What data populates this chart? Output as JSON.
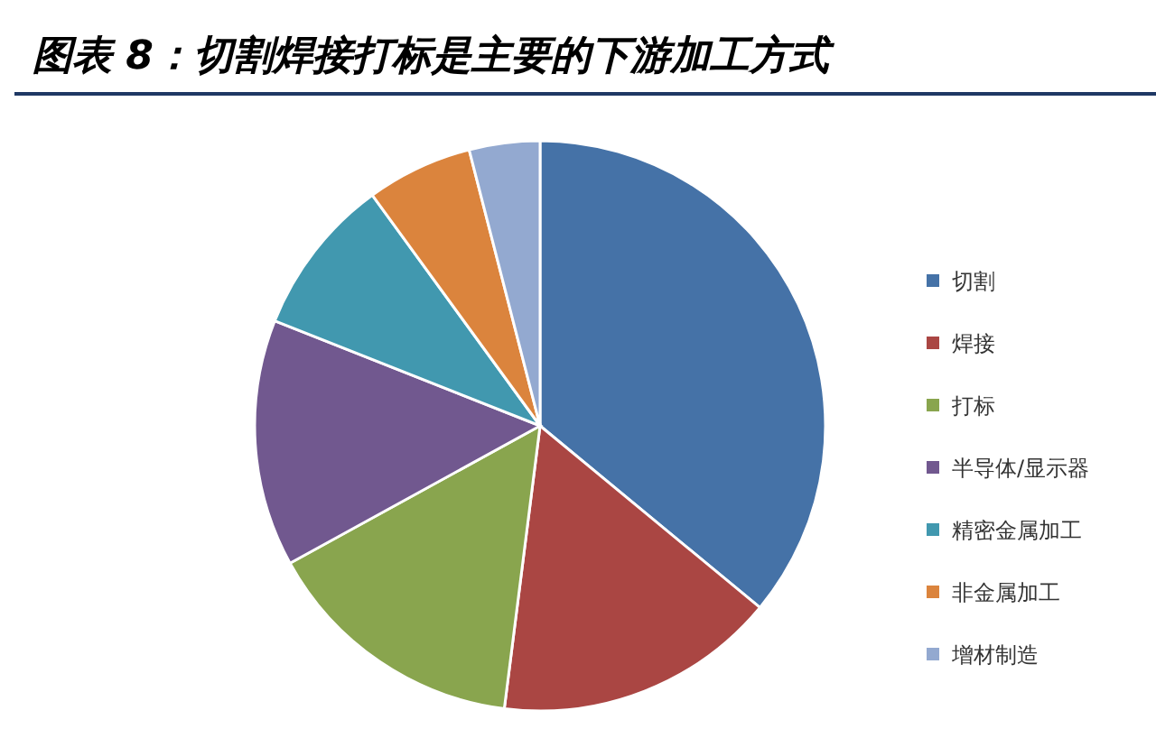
{
  "chart_data": {
    "type": "pie",
    "title": "图表 8：切割焊接打标是主要的下游加工方式",
    "categories": [
      "切割",
      "焊接",
      "打标",
      "半导体/显示器",
      "精密金属加工",
      "非金属加工",
      "增材制造"
    ],
    "values": [
      36,
      16,
      15,
      14,
      9,
      6,
      4
    ],
    "colors": [
      "#4572a7",
      "#aa4643",
      "#89a54e",
      "#71588f",
      "#4198af",
      "#db843d",
      "#93a9d0"
    ],
    "legend": "right"
  }
}
